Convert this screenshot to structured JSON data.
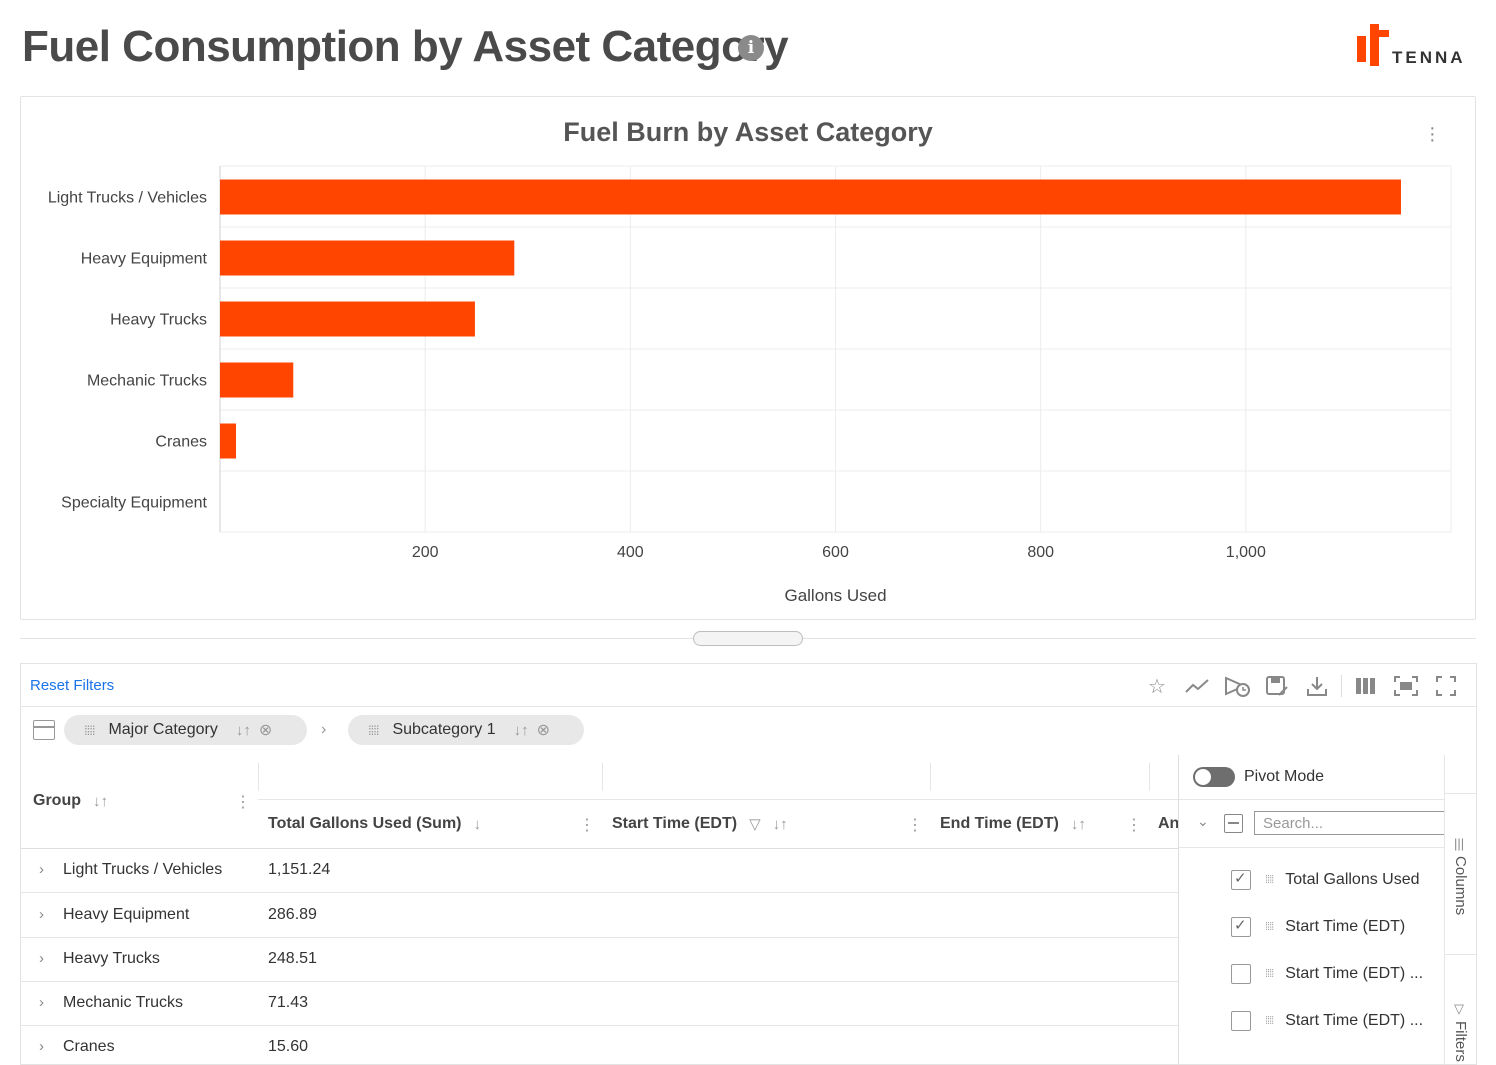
{
  "header": {
    "title": "Fuel Consumption by Asset Category",
    "info_icon": "info-icon",
    "logo_text": "TENNA",
    "brand_color": "#ff4500"
  },
  "chart_data": {
    "type": "bar",
    "orientation": "horizontal",
    "title": "Fuel Burn by Asset Category",
    "xlabel": "Gallons Used",
    "ylabel": "",
    "categories": [
      "Light Trucks / Vehicles",
      "Heavy Equipment",
      "Heavy Trucks",
      "Mechanic Trucks",
      "Cranes",
      "Specialty Equipment"
    ],
    "values": [
      1151.24,
      286.89,
      248.51,
      71.43,
      15.6,
      0
    ],
    "xlim": [
      0,
      1200
    ],
    "xticks": [
      200,
      400,
      600,
      800,
      1000
    ],
    "xtick_labels": [
      "200",
      "400",
      "600",
      "800",
      "1,000"
    ],
    "grid": true,
    "bar_color": "#ff4500"
  },
  "grid": {
    "reset_filters": "Reset Filters",
    "toolbar_icons": [
      "star-icon",
      "trend-icon",
      "schedule-icon",
      "save-icon",
      "download-icon",
      "columns-icon",
      "fit-icon",
      "fullscreen-icon"
    ],
    "group_chips": [
      {
        "label": "Major Category"
      },
      {
        "label": "Subcategory 1"
      }
    ],
    "columns": {
      "group": "Group",
      "total": "Total Gallons Used (Sum)",
      "start": "Start Time (EDT)",
      "end": "End Time (EDT)",
      "partial": "An"
    },
    "rows": [
      {
        "group": "Light Trucks / Vehicles",
        "total": "1,151.24"
      },
      {
        "group": "Heavy Equipment",
        "total": "286.89"
      },
      {
        "group": "Heavy Trucks",
        "total": "248.51"
      },
      {
        "group": "Mechanic Trucks",
        "total": "71.43"
      },
      {
        "group": "Cranes",
        "total": "15.60"
      }
    ],
    "side_panel": {
      "pivot_mode": "Pivot Mode",
      "search_placeholder": "Search...",
      "columns": [
        {
          "label": "Total Gallons Used",
          "checked": true
        },
        {
          "label": "Start Time (EDT)",
          "checked": true
        },
        {
          "label": "Start Time (EDT) ...",
          "checked": false
        },
        {
          "label": "Start Time (EDT) ...",
          "checked": false
        }
      ],
      "tab_columns": "Columns",
      "tab_filters": "Filters"
    }
  }
}
